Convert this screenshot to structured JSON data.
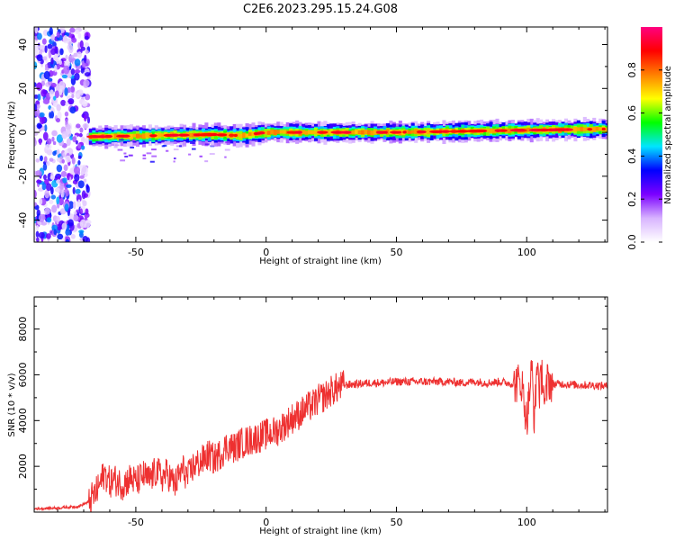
{
  "chart_data": [
    {
      "type": "heatmap",
      "title": "C2E6.2023.295.15.24.G08",
      "xlabel": "Height of straight line (km)",
      "ylabel": "Frequency (Hz)",
      "xlim": [
        -89,
        131
      ],
      "ylim": [
        -50,
        48
      ],
      "x_ticks": [
        -50,
        0,
        50,
        100
      ],
      "y_ticks": [
        -40,
        -20,
        0,
        20,
        40
      ],
      "colorbar": {
        "label": "Normalized spectral amplitude",
        "range": [
          0,
          1
        ],
        "ticks": [
          "0.0",
          "0.2",
          "0.4",
          "0.6",
          "0.8"
        ],
        "colormap": [
          "#ffffff",
          "#d8b4ff",
          "#7b00ff",
          "#0000ff",
          "#00e5ff",
          "#00ff00",
          "#ffff00",
          "#ff8000",
          "#ff0000",
          "#ff0080"
        ]
      },
      "features": {
        "noise_region_x": [
          -89,
          -68
        ],
        "signal_band_center_hz": [
          [
            -68,
            -2
          ],
          [
            -20,
            -1
          ],
          [
            -10,
            -1.5
          ],
          [
            0,
            0
          ],
          [
            50,
            0
          ],
          [
            100,
            1
          ],
          [
            131,
            1.5
          ]
        ],
        "signal_band_halfwidth_hz": 2,
        "grid": false
      }
    },
    {
      "type": "line",
      "xlabel": "Height of straight line (km)",
      "ylabel": "SNR (10 * v/v)",
      "xlim": [
        -89,
        131
      ],
      "ylim": [
        0,
        9400
      ],
      "x_ticks": [
        -50,
        0,
        50,
        100
      ],
      "y_ticks": [
        2000,
        4000,
        6000,
        8000
      ],
      "series": [
        {
          "color": "#ee3030",
          "x": [
            -89,
            -80,
            -72,
            -68,
            -65,
            -62,
            -60,
            -58,
            -55,
            -52,
            -50,
            -47,
            -45,
            -42,
            -40,
            -38,
            -35,
            -32,
            -30,
            -28,
            -25,
            -22,
            -20,
            -17,
            -15,
            -12,
            -10,
            -7,
            -5,
            -2,
            0,
            3,
            5,
            8,
            10,
            13,
            15,
            18,
            20,
            23,
            25,
            28,
            30,
            35,
            40,
            45,
            50,
            55,
            60,
            65,
            70,
            75,
            80,
            85,
            90,
            95,
            98,
            100,
            102,
            103,
            104,
            105,
            106,
            107,
            108,
            110,
            115,
            120,
            125,
            131
          ],
          "y": [
            150,
            180,
            250,
            450,
            900,
            1700,
            1300,
            1400,
            1200,
            1500,
            1300,
            1600,
            1400,
            1800,
            1500,
            1700,
            1200,
            1900,
            1500,
            2000,
            2200,
            2500,
            2300,
            2600,
            2900,
            2800,
            3000,
            3100,
            3200,
            3300,
            3400,
            3500,
            3600,
            3900,
            4100,
            4300,
            4500,
            4700,
            4900,
            5100,
            5300,
            5450,
            5550,
            5600,
            5650,
            5650,
            5700,
            5700,
            5700,
            5700,
            5700,
            5650,
            5700,
            5650,
            5700,
            5600,
            5700,
            4000,
            6300,
            3800,
            6700,
            5200,
            6200,
            4500,
            5800,
            5600,
            5600,
            5550,
            5550,
            5500
          ]
        }
      ],
      "grid": false
    }
  ]
}
